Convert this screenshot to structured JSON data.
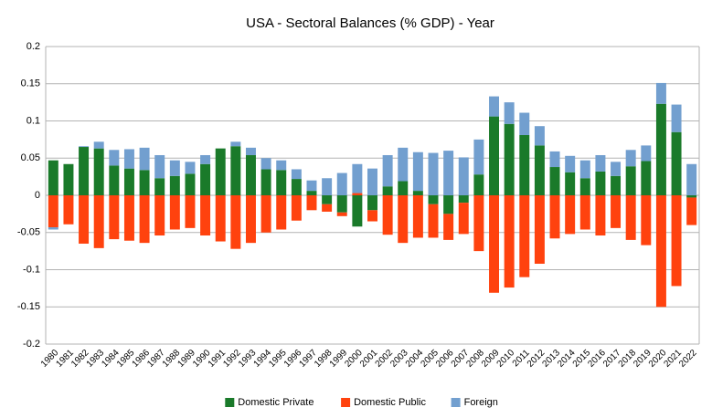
{
  "chart_data": {
    "type": "stacked_bar",
    "title": "USA - Sectoral Balances (% GDP) - Year",
    "categories": [
      "1980",
      "1981",
      "1982",
      "1983",
      "1984",
      "1985",
      "1986",
      "1987",
      "1988",
      "1989",
      "1990",
      "1991",
      "1992",
      "1993",
      "1994",
      "1995",
      "1996",
      "1997",
      "1998",
      "1999",
      "2000",
      "2001",
      "2002",
      "2003",
      "2004",
      "2005",
      "2006",
      "2007",
      "2008",
      "2009",
      "2010",
      "2011",
      "2012",
      "2013",
      "2014",
      "2015",
      "2016",
      "2017",
      "2018",
      "2019",
      "2020",
      "2021",
      "2022"
    ],
    "series": [
      {
        "name": "Domestic Private",
        "color": "#1a7a2a",
        "values": [
          0.047,
          0.042,
          0.065,
          0.063,
          0.04,
          0.036,
          0.034,
          0.023,
          0.026,
          0.029,
          0.042,
          0.063,
          0.066,
          0.054,
          0.035,
          0.034,
          0.022,
          0.006,
          -0.012,
          -0.023,
          -0.042,
          -0.02,
          0.012,
          0.019,
          0.006,
          -0.012,
          -0.025,
          -0.01,
          0.028,
          0.106,
          0.096,
          0.081,
          0.067,
          0.038,
          0.031,
          0.023,
          0.032,
          0.026,
          0.039,
          0.046,
          0.123,
          0.085,
          -0.003
        ]
      },
      {
        "name": "Domestic Public",
        "color": "#ff420e",
        "values": [
          -0.043,
          -0.039,
          -0.065,
          -0.071,
          -0.059,
          -0.061,
          -0.064,
          -0.054,
          -0.046,
          -0.044,
          -0.054,
          -0.062,
          -0.072,
          -0.064,
          -0.05,
          -0.046,
          -0.034,
          -0.02,
          -0.01,
          -0.005,
          0.003,
          -0.015,
          -0.053,
          -0.064,
          -0.057,
          -0.045,
          -0.035,
          -0.042,
          -0.075,
          -0.131,
          -0.124,
          -0.11,
          -0.092,
          -0.058,
          -0.052,
          -0.046,
          -0.054,
          -0.044,
          -0.06,
          -0.067,
          -0.15,
          -0.122,
          -0.037
        ]
      },
      {
        "name": "Foreign",
        "color": "#729fcf",
        "values": [
          -0.003,
          0.0,
          0.001,
          0.009,
          0.021,
          0.026,
          0.03,
          0.031,
          0.021,
          0.016,
          0.012,
          0.0,
          0.006,
          0.01,
          0.015,
          0.013,
          0.013,
          0.014,
          0.023,
          0.03,
          0.039,
          0.036,
          0.042,
          0.045,
          0.052,
          0.057,
          0.06,
          0.051,
          0.047,
          0.027,
          0.029,
          0.03,
          0.026,
          0.021,
          0.022,
          0.024,
          0.022,
          0.019,
          0.022,
          0.021,
          0.028,
          0.037,
          0.042
        ]
      }
    ],
    "ylim": [
      -0.2,
      0.2
    ],
    "yticks": [
      -0.2,
      -0.15,
      -0.1,
      -0.05,
      0,
      0.05,
      0.1,
      0.15,
      0.2
    ],
    "grid": true,
    "legend": "bottom"
  }
}
